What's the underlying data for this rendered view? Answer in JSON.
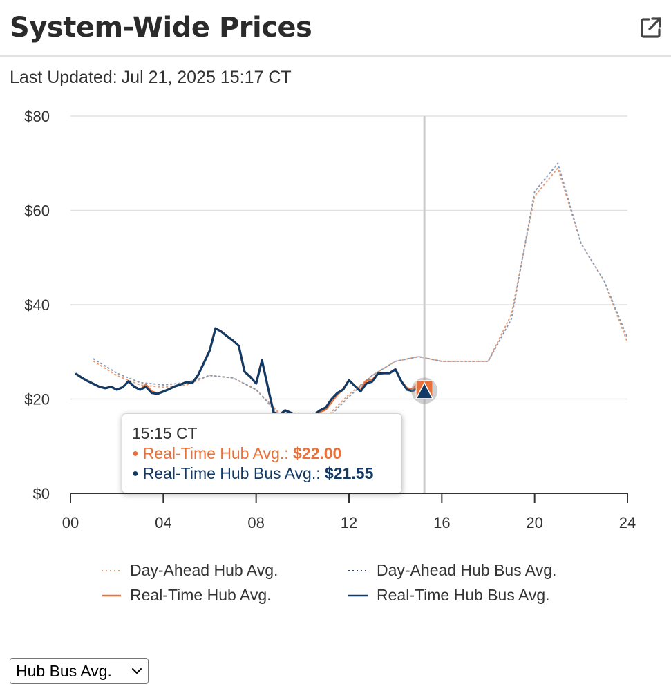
{
  "header": {
    "title": "System-Wide Prices",
    "open_icon": "external-link-icon"
  },
  "updated": {
    "label": "Last Updated:",
    "value": "Jul 21, 2025 15:17 CT"
  },
  "chart_data": {
    "type": "line",
    "title": "",
    "xlabel": "",
    "ylabel": "",
    "xlim": [
      0,
      24
    ],
    "ylim": [
      0,
      80
    ],
    "x_ticks": [
      "00",
      "04",
      "08",
      "12",
      "16",
      "20",
      "24"
    ],
    "y_ticks": [
      "$0",
      "$20",
      "$40",
      "$60",
      "$80"
    ],
    "grid": true,
    "legend_position": "bottom",
    "cursor_x": 15.25,
    "series": [
      {
        "name": "Day-Ahead Hub Avg.",
        "style": "dotted",
        "color": "#e8a07a",
        "x": [
          1,
          2,
          3,
          4,
          5,
          6,
          7,
          8,
          9,
          10,
          11,
          12,
          13,
          14,
          15,
          16,
          17,
          18,
          19,
          20,
          21,
          22,
          23,
          24
        ],
        "values": [
          28,
          25,
          23,
          22.5,
          23,
          25,
          24.5,
          22,
          17,
          15,
          16,
          21,
          25,
          28,
          29,
          28,
          28,
          28,
          38,
          63,
          69,
          53,
          45,
          32
        ]
      },
      {
        "name": "Day-Ahead Hub Bus Avg.",
        "style": "dotted",
        "color": "#8a9bb5",
        "x": [
          1,
          2,
          3,
          4,
          5,
          6,
          7,
          8,
          9,
          10,
          11,
          12,
          13,
          14,
          15,
          16,
          17,
          18,
          19,
          20,
          21,
          22,
          23,
          24
        ],
        "values": [
          28.5,
          25.5,
          23.5,
          23,
          23.5,
          25,
          24.5,
          22,
          16.5,
          14.5,
          15.5,
          20.5,
          25,
          28,
          29,
          28,
          28,
          28,
          37,
          64,
          70,
          53,
          45,
          33
        ]
      },
      {
        "name": "Real-Time Hub Avg.",
        "style": "solid",
        "color": "#e8703a",
        "x": [
          0.25,
          0.5,
          0.75,
          1,
          1.25,
          1.5,
          1.75,
          2,
          2.25,
          2.5,
          2.75,
          3,
          3.25,
          3.5,
          3.75,
          4,
          4.25,
          4.5,
          4.75,
          5,
          5.25,
          5.5,
          5.75,
          6,
          6.25,
          6.5,
          6.75,
          7,
          7.25,
          7.5,
          7.75,
          8,
          8.25,
          8.5,
          8.75,
          9,
          9.25,
          9.5,
          9.75,
          10,
          10.25,
          10.5,
          10.75,
          11,
          11.25,
          11.5,
          11.75,
          12,
          12.25,
          12.5,
          12.75,
          13,
          13.25,
          13.5,
          13.75,
          14,
          14.25,
          14.5,
          14.75,
          15,
          15.25
        ],
        "values": [
          25.3,
          24.5,
          23.8,
          23.2,
          22.6,
          22.3,
          22.6,
          22,
          22.5,
          23.8,
          22.6,
          22,
          23,
          21.6,
          21.2,
          21.6,
          22.1,
          22.7,
          23.1,
          23.6,
          23.4,
          25.1,
          27.7,
          30.3,
          35,
          34.3,
          33.3,
          32.4,
          31.3,
          25.8,
          24.7,
          23.3,
          28.2,
          22.6,
          17.2,
          16.6,
          17.6,
          17.1,
          16.6,
          16.2,
          16.1,
          16.7,
          17.3,
          17.8,
          19.4,
          21,
          22.1,
          24,
          22.8,
          21.8,
          23.9,
          24,
          25.4,
          25.5,
          25.5,
          26.3,
          23.8,
          22.3,
          22,
          23.8,
          22
        ]
      },
      {
        "name": "Real-Time Hub Bus Avg.",
        "style": "solid",
        "color": "#123a66",
        "x": [
          0.25,
          0.5,
          0.75,
          1,
          1.25,
          1.5,
          1.75,
          2,
          2.25,
          2.5,
          2.75,
          3,
          3.25,
          3.5,
          3.75,
          4,
          4.25,
          4.5,
          4.75,
          5,
          5.25,
          5.5,
          5.75,
          6,
          6.25,
          6.5,
          6.75,
          7,
          7.25,
          7.5,
          7.75,
          8,
          8.25,
          8.5,
          8.75,
          9,
          9.25,
          9.5,
          9.75,
          10,
          10.25,
          10.5,
          10.75,
          11,
          11.25,
          11.5,
          11.75,
          12,
          12.25,
          12.5,
          12.75,
          13,
          13.25,
          13.5,
          13.75,
          14,
          14.25,
          14.5,
          14.75,
          15,
          15.25
        ],
        "values": [
          25.3,
          24.5,
          23.8,
          23.2,
          22.6,
          22.3,
          22.6,
          22,
          22.5,
          23.8,
          22.6,
          22,
          22.6,
          21.3,
          21.1,
          21.6,
          22.1,
          22.7,
          23.1,
          23.6,
          23.4,
          25.1,
          27.7,
          30.3,
          35,
          34.3,
          33.3,
          32.4,
          31.3,
          25.8,
          24.7,
          23.3,
          28.2,
          22.6,
          17.2,
          16.6,
          17.6,
          17.1,
          16.6,
          16.2,
          16.1,
          16.7,
          17.6,
          18.2,
          20,
          21.3,
          22,
          24,
          22.8,
          21.6,
          23.3,
          23.7,
          25.4,
          25.5,
          25.5,
          26.3,
          23.8,
          22,
          21.7,
          22.6,
          21.55
        ]
      }
    ]
  },
  "tooltip": {
    "time": "15:15 CT",
    "rows": [
      {
        "bullet": "●",
        "label": "Real-Time Hub Avg.:",
        "value": "$22.00",
        "color": "#e8703a"
      },
      {
        "bullet": "●",
        "label": "Real-Time Hub Bus Avg.:",
        "value": "$21.55",
        "color": "#123a66"
      }
    ]
  },
  "legend": [
    {
      "label": "Day-Ahead Hub Avg.",
      "style": "dotted",
      "color": "#e8a07a"
    },
    {
      "label": "Day-Ahead Hub Bus Avg.",
      "style": "dotted",
      "color": "#2a4670"
    },
    {
      "label": "Real-Time Hub Avg.",
      "style": "solid",
      "color": "#e8703a"
    },
    {
      "label": "Real-Time Hub Bus Avg.",
      "style": "solid",
      "color": "#123a66"
    }
  ],
  "select": {
    "value": "Hub Bus Avg.",
    "icon": "chevron-down-icon"
  },
  "colors": {
    "real_time_hub": "#e8703a",
    "real_time_hub_bus": "#123a66",
    "cursor": "#cccccc",
    "grid": "#e0e0e0"
  }
}
